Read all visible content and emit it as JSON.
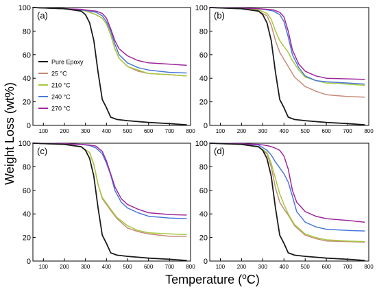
{
  "figure": {
    "ylabel": "Weight Loss (wt%)",
    "xlabel": "Temperature (",
    "xlabel_sup": "o",
    "xlabel_tail": "C)"
  },
  "colors": {
    "Pure Epoxy": "#1a1a1a",
    "25 °C": "#c58a78",
    "210 °C": "#a6c83c",
    "240 °C": "#4a78d8",
    "270 °C": "#a0269c"
  },
  "chart_data": [
    {
      "type": "line",
      "panel_label": "(a)",
      "xlim": [
        50,
        800
      ],
      "ylim": [
        0,
        100
      ],
      "x_ticks": [
        100,
        200,
        300,
        400,
        500,
        600,
        700,
        800
      ],
      "y_ticks": [
        0,
        20,
        40,
        60,
        80,
        100
      ],
      "legend": {
        "placement": "bottom-left",
        "entries": [
          "Pure Epoxy",
          "25 °C",
          "210 °C",
          "240 °C",
          "270 °C"
        ]
      },
      "series": [
        {
          "name": "Pure Epoxy",
          "x": [
            50,
            200,
            280,
            300,
            320,
            340,
            360,
            380,
            400,
            420,
            450,
            500,
            600,
            700,
            780
          ],
          "y": [
            100,
            99,
            97,
            94,
            87,
            72,
            45,
            22,
            15,
            7,
            5,
            4,
            2.5,
            1.5,
            0.5
          ]
        },
        {
          "name": "25 °C",
          "x": [
            50,
            200,
            280,
            320,
            350,
            380,
            400,
            420,
            440,
            460,
            500,
            550,
            600,
            700,
            780
          ],
          "y": [
            100,
            99,
            98,
            96,
            94,
            91,
            86,
            77,
            65,
            57,
            50,
            46,
            44,
            43,
            42
          ]
        },
        {
          "name": "210 °C",
          "x": [
            50,
            200,
            280,
            320,
            350,
            380,
            400,
            420,
            440,
            460,
            500,
            550,
            600,
            700,
            780
          ],
          "y": [
            100,
            99,
            98,
            96,
            94,
            91,
            86,
            77,
            65,
            57,
            50,
            47,
            44,
            43,
            42
          ]
        },
        {
          "name": "240 °C",
          "x": [
            50,
            200,
            280,
            320,
            350,
            380,
            400,
            420,
            440,
            460,
            500,
            550,
            600,
            700,
            780
          ],
          "y": [
            100,
            99,
            98,
            97,
            96,
            93,
            88,
            80,
            69,
            60,
            53,
            49,
            47,
            45,
            44.5
          ]
        },
        {
          "name": "270 °C",
          "x": [
            50,
            200,
            280,
            320,
            350,
            380,
            400,
            420,
            440,
            460,
            500,
            550,
            600,
            700,
            780
          ],
          "y": [
            100,
            99,
            98.5,
            97.5,
            97,
            95,
            91,
            82,
            72,
            65,
            59,
            55,
            53,
            52,
            51
          ]
        }
      ]
    },
    {
      "type": "line",
      "panel_label": "(b)",
      "xlim": [
        50,
        800
      ],
      "ylim": [
        0,
        100
      ],
      "x_ticks": [
        100,
        200,
        300,
        400,
        500,
        600,
        700,
        800
      ],
      "y_ticks": [
        0,
        20,
        40,
        60,
        80,
        100
      ],
      "series": [
        {
          "name": "Pure Epoxy",
          "x": [
            50,
            200,
            280,
            300,
            320,
            340,
            360,
            380,
            400,
            420,
            450,
            500,
            600,
            700,
            780
          ],
          "y": [
            100,
            99,
            97,
            94,
            87,
            72,
            45,
            22,
            15,
            7,
            5,
            4,
            2.5,
            1.5,
            0.5
          ]
        },
        {
          "name": "25 °C",
          "x": [
            50,
            200,
            280,
            320,
            340,
            360,
            380,
            400,
            420,
            450,
            500,
            550,
            600,
            700,
            780
          ],
          "y": [
            100,
            99,
            97,
            93,
            85,
            72,
            62,
            56,
            50,
            41,
            33,
            29,
            26,
            24.5,
            24
          ]
        },
        {
          "name": "210 °C",
          "x": [
            50,
            200,
            280,
            320,
            340,
            360,
            380,
            400,
            420,
            440,
            470,
            500,
            550,
            600,
            700,
            780
          ],
          "y": [
            100,
            99,
            98,
            95,
            90,
            80,
            72,
            67,
            62,
            55,
            47,
            41,
            38,
            36,
            35,
            34
          ]
        },
        {
          "name": "240 °C",
          "x": [
            50,
            200,
            280,
            320,
            350,
            380,
            400,
            420,
            440,
            470,
            500,
            550,
            600,
            700,
            780
          ],
          "y": [
            100,
            99.5,
            99,
            98,
            97,
            94,
            88,
            75,
            60,
            49,
            42,
            38,
            37,
            36,
            35
          ]
        },
        {
          "name": "270 °C",
          "x": [
            50,
            200,
            280,
            320,
            350,
            380,
            400,
            420,
            440,
            470,
            500,
            550,
            600,
            700,
            780
          ],
          "y": [
            100,
            99.5,
            99,
            98.5,
            98,
            96,
            92,
            80,
            64,
            52,
            46,
            42,
            40,
            39.5,
            39
          ]
        }
      ]
    },
    {
      "type": "line",
      "panel_label": "(c)",
      "xlim": [
        50,
        800
      ],
      "ylim": [
        0,
        100
      ],
      "x_ticks": [
        100,
        200,
        300,
        400,
        500,
        600,
        700,
        800
      ],
      "y_ticks": [
        0,
        20,
        40,
        60,
        80,
        100
      ],
      "series": [
        {
          "name": "Pure Epoxy",
          "x": [
            50,
            200,
            280,
            300,
            320,
            340,
            360,
            380,
            400,
            420,
            450,
            500,
            600,
            700,
            780
          ],
          "y": [
            100,
            99,
            97,
            94,
            87,
            72,
            45,
            22,
            15,
            7,
            5,
            4,
            2.5,
            1.5,
            0.5
          ]
        },
        {
          "name": "25 °C",
          "x": [
            50,
            200,
            280,
            320,
            340,
            360,
            380,
            400,
            420,
            450,
            500,
            550,
            600,
            700,
            780
          ],
          "y": [
            100,
            99,
            97,
            92,
            82,
            65,
            53,
            48,
            43,
            36,
            28,
            25,
            23,
            21,
            21
          ]
        },
        {
          "name": "210 °C",
          "x": [
            50,
            200,
            280,
            320,
            340,
            360,
            380,
            400,
            420,
            450,
            500,
            550,
            600,
            700,
            780
          ],
          "y": [
            100,
            99,
            97,
            92,
            82,
            65,
            54,
            49,
            44,
            37,
            30,
            26,
            24,
            23,
            22.5
          ]
        },
        {
          "name": "240 °C",
          "x": [
            50,
            200,
            280,
            320,
            350,
            380,
            400,
            420,
            440,
            470,
            500,
            550,
            600,
            700,
            780
          ],
          "y": [
            100,
            99.5,
            99,
            98,
            96,
            91,
            83,
            73,
            60,
            50,
            45,
            41,
            38,
            36.5,
            36
          ]
        },
        {
          "name": "270 °C",
          "x": [
            50,
            200,
            280,
            320,
            350,
            380,
            400,
            420,
            440,
            470,
            500,
            550,
            600,
            700,
            780
          ],
          "y": [
            100,
            99.5,
            99,
            98.5,
            97.5,
            93,
            85,
            74,
            63,
            53,
            48,
            44,
            41,
            39.5,
            39
          ]
        }
      ]
    },
    {
      "type": "line",
      "panel_label": "(d)",
      "xlim": [
        50,
        800
      ],
      "ylim": [
        0,
        100
      ],
      "x_ticks": [
        100,
        200,
        300,
        400,
        500,
        600,
        700,
        800
      ],
      "y_ticks": [
        0,
        20,
        40,
        60,
        80,
        100
      ],
      "series": [
        {
          "name": "Pure Epoxy",
          "x": [
            50,
            200,
            280,
            300,
            320,
            340,
            360,
            380,
            400,
            420,
            450,
            500,
            600,
            700,
            780
          ],
          "y": [
            100,
            99,
            97,
            94,
            87,
            72,
            45,
            22,
            15,
            7,
            5,
            4,
            2.5,
            1.5,
            0.5
          ]
        },
        {
          "name": "25 °C",
          "x": [
            50,
            200,
            280,
            320,
            340,
            360,
            380,
            400,
            420,
            450,
            500,
            550,
            600,
            700,
            780
          ],
          "y": [
            100,
            99,
            97,
            91,
            80,
            62,
            50,
            44,
            39,
            30,
            22,
            19,
            17,
            16.5,
            16
          ]
        },
        {
          "name": "210 °C",
          "x": [
            50,
            200,
            280,
            320,
            340,
            360,
            380,
            400,
            420,
            450,
            500,
            550,
            600,
            700,
            780
          ],
          "y": [
            100,
            99,
            97,
            92,
            83,
            70,
            57,
            48,
            40,
            31,
            23,
            20,
            18,
            17,
            16.5
          ]
        },
        {
          "name": "240 °C",
          "x": [
            50,
            200,
            280,
            320,
            340,
            360,
            380,
            400,
            420,
            440,
            460,
            500,
            550,
            600,
            700,
            780
          ],
          "y": [
            100,
            99.5,
            98.5,
            94,
            90,
            84,
            79,
            74,
            67,
            55,
            42,
            33,
            29,
            27,
            26,
            25.5
          ]
        },
        {
          "name": "270 °C",
          "x": [
            50,
            200,
            280,
            320,
            350,
            380,
            400,
            420,
            440,
            460,
            500,
            550,
            600,
            700,
            780
          ],
          "y": [
            100,
            99.5,
            99,
            98,
            96.5,
            94,
            89,
            78,
            60,
            50,
            42,
            38,
            36,
            34.5,
            33
          ]
        }
      ]
    }
  ]
}
